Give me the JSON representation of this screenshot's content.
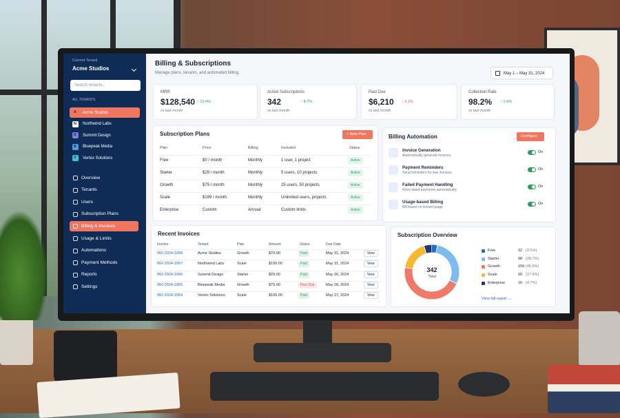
{
  "sidebar": {
    "tenant_label": "Current Tenant",
    "tenant_name": "Acme Studios",
    "search_placeholder": "Search tenants...",
    "tenants_heading": "ALL TENANTS",
    "tenants": [
      {
        "initial": "A",
        "name": "Acme Studios",
        "color": "#f0765f"
      },
      {
        "initial": "N",
        "name": "Northwind Labs",
        "color": "#ffffff"
      },
      {
        "initial": "S",
        "name": "Summit Design",
        "color": "#7f7be0"
      },
      {
        "initial": "B",
        "name": "Bluepeak Media",
        "color": "#4a9be8"
      },
      {
        "initial": "V",
        "name": "Vertex Solutions",
        "color": "#3cc2d8"
      }
    ],
    "nav": [
      "Overview",
      "Tenants",
      "Users",
      "Subscription Plans",
      "Billing & Invoices",
      "Usage & Limits",
      "Automations",
      "Payment Methods",
      "Reports",
      "Settings"
    ]
  },
  "header": {
    "title": "Billing & Subscriptions",
    "subtitle": "Manage plans, tenants, and automated billing.",
    "date_range": "May 1 – May 31, 2024"
  },
  "stats": [
    {
      "label": "MRR",
      "value": "$128,540",
      "delta": "↑ 12.4%",
      "note": "vs last month",
      "color": "#1f9d5c"
    },
    {
      "label": "Active Subscriptions",
      "value": "342",
      "delta": "↑ 8.7%",
      "note": "vs last month",
      "color": "#1f9d5c"
    },
    {
      "label": "Past Due",
      "value": "$6,210",
      "delta": "↑ 3.1%",
      "note": "vs last month",
      "color": "#e0574c"
    },
    {
      "label": "Collection Rate",
      "value": "98.2%",
      "delta": "↑ 1.6%",
      "note": "vs last month",
      "color": "#1f9d5c"
    }
  ],
  "plans": {
    "title": "Subscription Plans",
    "button": "+ New Plan",
    "columns": [
      "Plan",
      "Price",
      "Billing",
      "Included",
      "Status"
    ],
    "rows": [
      [
        "Free",
        "$0 / month",
        "Monthly",
        "1 user, 1 project",
        "Active"
      ],
      [
        "Starter",
        "$29 / month",
        "Monthly",
        "5 users, 10 projects",
        "Active"
      ],
      [
        "Growth",
        "$79 / month",
        "Monthly",
        "25 users, 50 projects",
        "Active"
      ],
      [
        "Scale",
        "$199 / month",
        "Monthly",
        "Unlimited users, projects",
        "Active"
      ],
      [
        "Enterprise",
        "Custom",
        "Annual",
        "Custom limits",
        "Active"
      ]
    ]
  },
  "automation": {
    "title": "Billing Automation",
    "button": "Configure",
    "items": [
      {
        "name": "Invoice Generation",
        "desc": "Automatically generate invoices",
        "state": "On"
      },
      {
        "name": "Payment Reminders",
        "desc": "Send reminders for due invoices",
        "state": "On"
      },
      {
        "name": "Failed Payment Handling",
        "desc": "Retry failed payments automatically",
        "state": "On"
      },
      {
        "name": "Usage-based Billing",
        "desc": "Bill based on tenant usage",
        "state": "On"
      }
    ]
  },
  "invoices": {
    "title": "Recent Invoices",
    "columns": [
      "Invoice",
      "Tenant",
      "Plan",
      "Amount",
      "Status",
      "Due Date"
    ],
    "rows": [
      [
        "INV-2024-1058",
        "Acme Studios",
        "Growth",
        "$79.00",
        "Paid",
        "May 31, 2024",
        "View"
      ],
      [
        "INV-2024-1057",
        "Northwind Labs",
        "Scale",
        "$199.00",
        "Paid",
        "May 31, 2024",
        "View"
      ],
      [
        "INV-2024-1056",
        "Summit Design",
        "Starter",
        "$29.00",
        "Paid",
        "May 30, 2024",
        "View"
      ],
      [
        "INV-2024-1055",
        "Bluepeak Media",
        "Growth",
        "$79.00",
        "Past Due",
        "May 28, 2024",
        "View"
      ],
      [
        "INV-2024-1054",
        "Vertex Solutions",
        "Scale",
        "$199.00",
        "Paid",
        "May 27, 2024",
        "View"
      ]
    ],
    "status_colors": [
      "#2e9e5b",
      "#2e9e5b",
      "#2e9e5b",
      "#e0574c",
      "#2e9e5b"
    ]
  },
  "overview": {
    "title": "Subscription Overview",
    "total": 342,
    "total_label": "Total",
    "items": [
      {
        "name": "Free",
        "value": 12,
        "share": "(3.5%)",
        "color": "#1e6fd9"
      },
      {
        "name": "Starter",
        "value": 98,
        "share": "(28.7%)",
        "color": "#7dbbee"
      },
      {
        "name": "Growth",
        "value": 156,
        "share": "(45.6%)",
        "color": "#f07a6a"
      },
      {
        "name": "Scale",
        "value": 60,
        "share": "(17.5%)",
        "color": "#f5b82e"
      },
      {
        "name": "Enterprise",
        "value": 16,
        "share": "(4.7%)",
        "color": "#1d3b72"
      }
    ],
    "link": "View full report →"
  }
}
